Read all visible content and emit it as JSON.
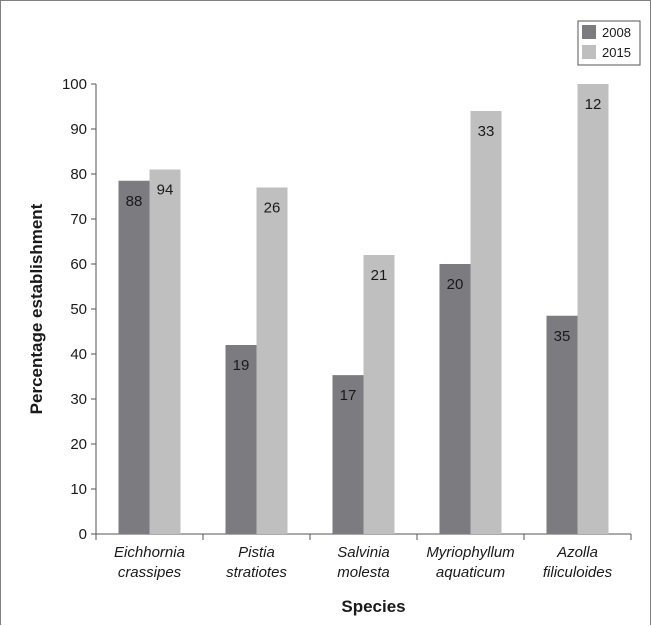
{
  "chart_data": {
    "type": "bar",
    "xlabel": "Species",
    "ylabel": "Percentage establishment",
    "ylim": [
      0,
      100
    ],
    "yticks": [
      0,
      10,
      20,
      30,
      40,
      50,
      60,
      70,
      80,
      90,
      100
    ],
    "categories": [
      [
        "Eichhornia",
        "crassipes"
      ],
      [
        "Pistia",
        "stratiotes"
      ],
      [
        "Salvinia",
        "molesta"
      ],
      [
        "Myriophyllum",
        "aquaticum"
      ],
      [
        "Azolla",
        "filiculoides"
      ]
    ],
    "series": [
      {
        "name": "2008",
        "color": "#7b7b80",
        "values": [
          78.5,
          42,
          35.3,
          60,
          48.5
        ],
        "labels": [
          "88",
          "19",
          "17",
          "20",
          "35"
        ]
      },
      {
        "name": "2015",
        "color": "#bfbfbf",
        "values": [
          81,
          77,
          62,
          94,
          100
        ],
        "labels": [
          "94",
          "26",
          "21",
          "33",
          "12"
        ]
      }
    ],
    "legend": "top-right",
    "grid": false
  }
}
